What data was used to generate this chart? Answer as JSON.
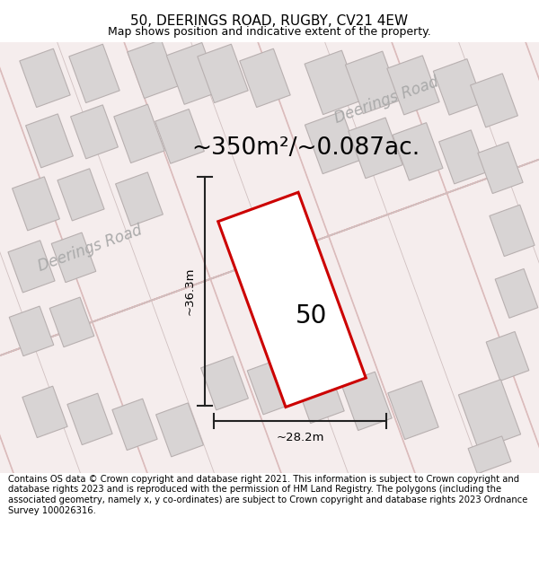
{
  "title": "50, DEERINGS ROAD, RUGBY, CV21 4EW",
  "subtitle": "Map shows position and indicative extent of the property.",
  "area_text": "~350m²/~0.087ac.",
  "number_label": "50",
  "dim_width": "~28.2m",
  "dim_height": "~36.3m",
  "road_label_1": "Deerings Road",
  "road_label_2": "Deerings Road",
  "footer_text": "Contains OS data © Crown copyright and database right 2021. This information is subject to Crown copyright and database rights 2023 and is reproduced with the permission of HM Land Registry. The polygons (including the associated geometry, namely x, y co-ordinates) are subject to Crown copyright and database rights 2023 Ordnance Survey 100026316.",
  "map_bg_color": "#f5eded",
  "road_color": "#e8b8b8",
  "plot_line_color": "#d0c0c0",
  "building_fill": "#d8d4d4",
  "building_edge": "#b8b0b0",
  "highlight_fill": "#ffffff",
  "highlight_edge": "#cc0000",
  "dim_line_color": "#222222",
  "road_label_color": "#aaaaaa",
  "title_fontsize": 11,
  "subtitle_fontsize": 9,
  "area_fontsize": 19,
  "label_fontsize": 20,
  "road_fontsize": 12,
  "footer_fontsize": 7.2
}
